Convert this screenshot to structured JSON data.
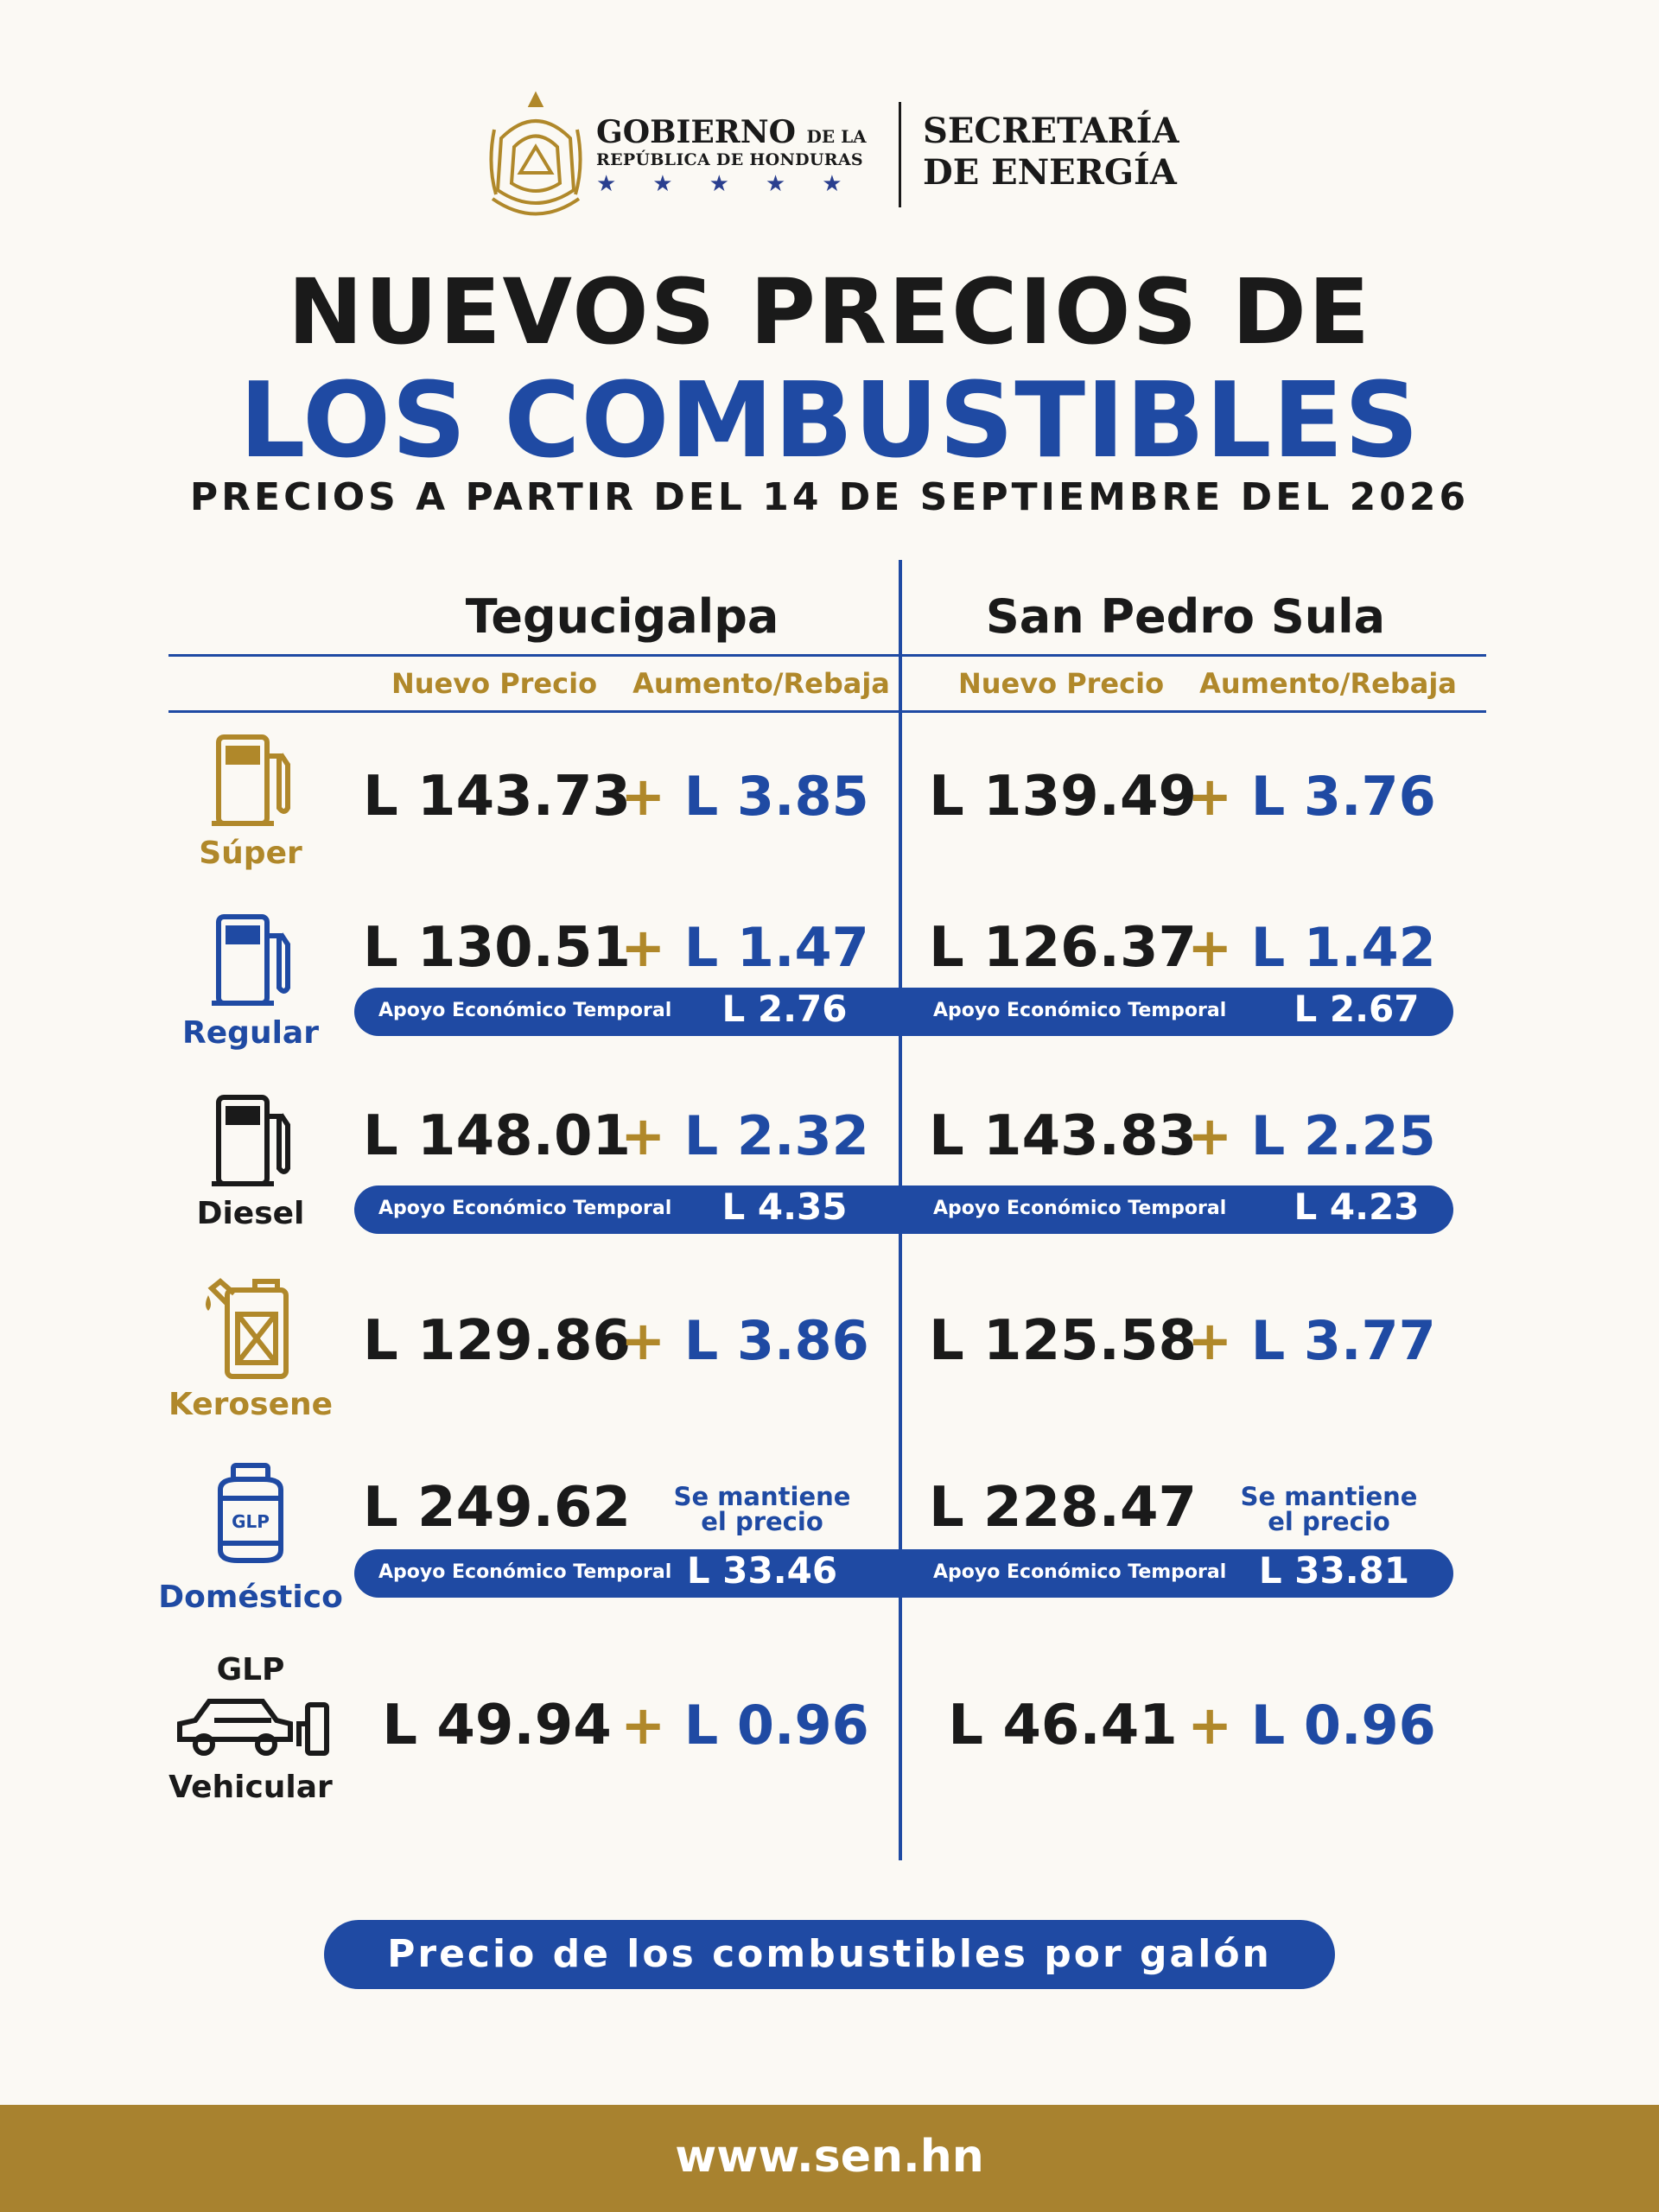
{
  "header": {
    "gov_line1": "GOBIERNO",
    "gov_line1_small": "DE LA",
    "gov_line2": "REPÚBLICA DE HONDURAS",
    "stars": "★★★★★",
    "secretaria_line1": "SECRETARÍA",
    "secretaria_line2": "DE ENERGÍA"
  },
  "title": {
    "line1": "NUEVOS PRECIOS DE",
    "line2": "LOS COMBUSTIBLES",
    "subtitle": "PRECIOS A PARTIR DEL 14 DE SEPTIEMBRE DEL 2026"
  },
  "cities": {
    "tegucigalpa": "Tegucigalpa",
    "san_pedro_sula": "San Pedro Sula"
  },
  "columns": {
    "nuevo_precio": "Nuevo Precio",
    "aumento_rebaja": "Aumento/Rebaja"
  },
  "apoyo_label": "Apoyo Económico Temporal",
  "plus": "+",
  "fuels": [
    {
      "name": "Súper",
      "color": "#b0882a",
      "icon": "fuel-pump-icon",
      "teg": {
        "price": "L 143.73",
        "change": "L 3.85"
      },
      "sps": {
        "price": "L 139.49",
        "change": "L 3.76"
      }
    },
    {
      "name": "Regular",
      "color": "#1f4aa3",
      "icon": "fuel-pump-icon",
      "teg": {
        "price": "L 130.51",
        "change": "L 1.47",
        "apoyo": "L 2.76"
      },
      "sps": {
        "price": "L 126.37",
        "change": "L 1.42",
        "apoyo": "L 2.67"
      }
    },
    {
      "name": "Diesel",
      "color": "#1a1a1a",
      "icon": "fuel-pump-icon",
      "teg": {
        "price": "L 148.01",
        "change": "L 2.32",
        "apoyo": "L 4.35"
      },
      "sps": {
        "price": "L 143.83",
        "change": "L 2.25",
        "apoyo": "L 4.23"
      }
    },
    {
      "name": "Kerosene",
      "color": "#b0882a",
      "icon": "jerrycan-icon",
      "teg": {
        "price": "L 129.86",
        "change": "L 3.86"
      },
      "sps": {
        "price": "L 125.58",
        "change": "L 3.77"
      }
    },
    {
      "name": "Doméstico",
      "color": "#1f4aa3",
      "icon": "gas-cylinder-icon",
      "icon_text": "GLP",
      "teg": {
        "price": "L 249.62",
        "same_line1": "Se mantiene",
        "same_line2": "el precio",
        "apoyo": "L 33.46"
      },
      "sps": {
        "price": "L 228.47",
        "same_line1": "Se mantiene",
        "same_line2": "el precio",
        "apoyo": "L 33.81"
      }
    },
    {
      "name": "Vehicular",
      "name_top": "GLP",
      "color": "#1a1a1a",
      "icon": "car-fuel-icon",
      "teg": {
        "price": "L 49.94",
        "change": "L 0.96"
      },
      "sps": {
        "price": "L 46.41",
        "change": "L 0.96"
      }
    }
  ],
  "footer_note": "Precio de los combustibles por galón",
  "website": "www.sen.hn"
}
